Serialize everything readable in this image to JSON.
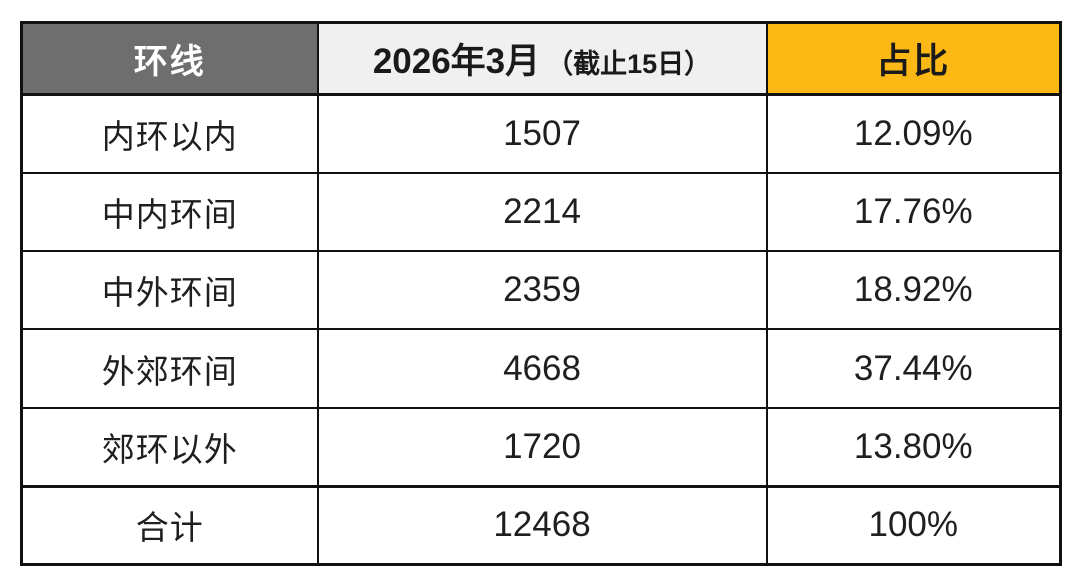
{
  "colors": {
    "header_gray_bg": "#6e6e6e",
    "header_gray_text": "#ffffff",
    "header_month_bg": "#f0f0f0",
    "header_gold_bg": "#fcb814",
    "border": "#111111",
    "body_text": "#1f1f1f",
    "page_bg": "#ffffff"
  },
  "table": {
    "header": {
      "ring_label": "环线",
      "month_label_main": "2026年3月",
      "month_label_sub": "（截止15日）",
      "share_label": "占比"
    },
    "rows": [
      {
        "ring": "内环以内",
        "value": "1507",
        "share": "12.09%"
      },
      {
        "ring": "中内环间",
        "value": "2214",
        "share": "17.76%"
      },
      {
        "ring": "中外环间",
        "value": "2359",
        "share": "18.92%"
      },
      {
        "ring": "外郊环间",
        "value": "4668",
        "share": "37.44%"
      },
      {
        "ring": "郊环以外",
        "value": "1720",
        "share": "13.80%"
      }
    ],
    "total": {
      "ring": "合计",
      "value": "12468",
      "share": "100%"
    }
  },
  "chart_data": {
    "type": "table",
    "title": "",
    "columns": [
      "环线",
      "2026年3月（截止15日）",
      "占比"
    ],
    "categories": [
      "内环以内",
      "中内环间",
      "中外环间",
      "外郊环间",
      "郊环以外"
    ],
    "series": [
      {
        "name": "2026年3月（截止15日）",
        "values": [
          1507,
          2214,
          2359,
          4668,
          1720
        ]
      },
      {
        "name": "占比",
        "values": [
          "12.09%",
          "17.76%",
          "18.92%",
          "37.44%",
          "13.80%"
        ]
      }
    ],
    "total_row": {
      "label": "合计",
      "value": 12468,
      "share": "100%"
    }
  }
}
